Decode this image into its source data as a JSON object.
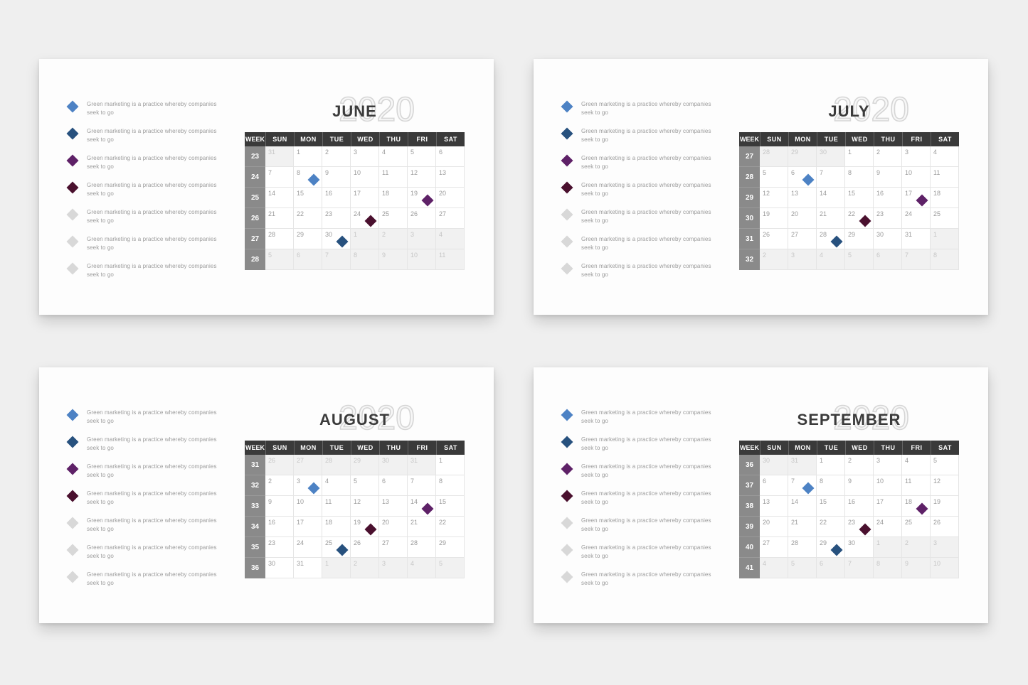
{
  "page": {
    "background": "#EFEFEF",
    "panel_background": "#FDFDFD"
  },
  "colors": {
    "light_blue": "#4D82C4",
    "dark_blue": "#27517E",
    "purple": "#5E2167",
    "maroon": "#4A102E",
    "gray": "#D8D8D8",
    "header_bg": "#3A3A3A",
    "header_text": "#FFFFFF",
    "week_cell_bg": "#8A8A8A",
    "day_text": "#9B9B9B",
    "muted_day_text": "#C6C6C6",
    "muted_cell_bg": "#F1F1F1",
    "grid_line": "#E5E5E5",
    "month_title_text": "#3B3B3B",
    "year_outline": "#D6D6D6",
    "legend_text_color": "#9B9B9B"
  },
  "legend_text": {
    "line1": "Green marketing is a practice whereby companies",
    "line2": "seek to go"
  },
  "legend_palette": [
    "light_blue",
    "dark_blue",
    "purple",
    "maroon",
    "gray",
    "gray",
    "gray"
  ],
  "weekday_headers": [
    "WEEK",
    "SUN",
    "MON",
    "TUE",
    "WED",
    "THU",
    "FRI",
    "SAT"
  ],
  "panels": [
    {
      "month": "JUNE",
      "year": "2020",
      "weeks": [
        {
          "num": "23",
          "days": [
            {
              "d": "31",
              "x": true
            },
            {
              "d": "1"
            },
            {
              "d": "2"
            },
            {
              "d": "3"
            },
            {
              "d": "4"
            },
            {
              "d": "5"
            },
            {
              "d": "6"
            }
          ]
        },
        {
          "num": "24",
          "days": [
            {
              "d": "7"
            },
            {
              "d": "8",
              "m": "light_blue"
            },
            {
              "d": "9"
            },
            {
              "d": "10"
            },
            {
              "d": "11"
            },
            {
              "d": "12"
            },
            {
              "d": "13"
            }
          ]
        },
        {
          "num": "25",
          "days": [
            {
              "d": "14"
            },
            {
              "d": "15"
            },
            {
              "d": "16"
            },
            {
              "d": "17"
            },
            {
              "d": "18"
            },
            {
              "d": "19",
              "m": "purple"
            },
            {
              "d": "20"
            }
          ]
        },
        {
          "num": "26",
          "days": [
            {
              "d": "21"
            },
            {
              "d": "22"
            },
            {
              "d": "23"
            },
            {
              "d": "24",
              "m": "maroon"
            },
            {
              "d": "25"
            },
            {
              "d": "26"
            },
            {
              "d": "27"
            }
          ]
        },
        {
          "num": "27",
          "days": [
            {
              "d": "28"
            },
            {
              "d": "29"
            },
            {
              "d": "30",
              "m": "dark_blue"
            },
            {
              "d": "1",
              "x": true
            },
            {
              "d": "2",
              "x": true
            },
            {
              "d": "3",
              "x": true
            },
            {
              "d": "4",
              "x": true
            }
          ]
        },
        {
          "num": "28",
          "days": [
            {
              "d": "5",
              "x": true
            },
            {
              "d": "6",
              "x": true
            },
            {
              "d": "7",
              "x": true
            },
            {
              "d": "8",
              "x": true
            },
            {
              "d": "9",
              "x": true
            },
            {
              "d": "10",
              "x": true
            },
            {
              "d": "11",
              "x": true
            }
          ]
        }
      ]
    },
    {
      "month": "JULY",
      "year": "2020",
      "weeks": [
        {
          "num": "27",
          "days": [
            {
              "d": "28",
              "x": true
            },
            {
              "d": "29",
              "x": true
            },
            {
              "d": "30",
              "x": true
            },
            {
              "d": "1"
            },
            {
              "d": "2"
            },
            {
              "d": "3"
            },
            {
              "d": "4"
            }
          ]
        },
        {
          "num": "28",
          "days": [
            {
              "d": "5"
            },
            {
              "d": "6",
              "m": "light_blue"
            },
            {
              "d": "7"
            },
            {
              "d": "8"
            },
            {
              "d": "9"
            },
            {
              "d": "10"
            },
            {
              "d": "11"
            }
          ]
        },
        {
          "num": "29",
          "days": [
            {
              "d": "12"
            },
            {
              "d": "13"
            },
            {
              "d": "14"
            },
            {
              "d": "15"
            },
            {
              "d": "16"
            },
            {
              "d": "17",
              "m": "purple"
            },
            {
              "d": "18"
            }
          ]
        },
        {
          "num": "30",
          "days": [
            {
              "d": "19"
            },
            {
              "d": "20"
            },
            {
              "d": "21"
            },
            {
              "d": "22",
              "m": "maroon"
            },
            {
              "d": "23"
            },
            {
              "d": "24"
            },
            {
              "d": "25"
            }
          ]
        },
        {
          "num": "31",
          "days": [
            {
              "d": "26"
            },
            {
              "d": "27"
            },
            {
              "d": "28",
              "m": "dark_blue"
            },
            {
              "d": "29"
            },
            {
              "d": "30"
            },
            {
              "d": "31"
            },
            {
              "d": "1",
              "x": true
            }
          ]
        },
        {
          "num": "32",
          "days": [
            {
              "d": "2",
              "x": true
            },
            {
              "d": "3",
              "x": true
            },
            {
              "d": "4",
              "x": true
            },
            {
              "d": "5",
              "x": true
            },
            {
              "d": "6",
              "x": true
            },
            {
              "d": "7",
              "x": true
            },
            {
              "d": "8",
              "x": true
            }
          ]
        }
      ]
    },
    {
      "month": "AUGUST",
      "year": "2020",
      "weeks": [
        {
          "num": "31",
          "days": [
            {
              "d": "26",
              "x": true
            },
            {
              "d": "27",
              "x": true
            },
            {
              "d": "28",
              "x": true
            },
            {
              "d": "29",
              "x": true
            },
            {
              "d": "30",
              "x": true
            },
            {
              "d": "31",
              "x": true
            },
            {
              "d": "1"
            }
          ]
        },
        {
          "num": "32",
          "days": [
            {
              "d": "2"
            },
            {
              "d": "3",
              "m": "light_blue"
            },
            {
              "d": "4"
            },
            {
              "d": "5"
            },
            {
              "d": "6"
            },
            {
              "d": "7"
            },
            {
              "d": "8"
            }
          ]
        },
        {
          "num": "33",
          "days": [
            {
              "d": "9"
            },
            {
              "d": "10"
            },
            {
              "d": "11"
            },
            {
              "d": "12"
            },
            {
              "d": "13"
            },
            {
              "d": "14",
              "m": "purple"
            },
            {
              "d": "15"
            }
          ]
        },
        {
          "num": "34",
          "days": [
            {
              "d": "16"
            },
            {
              "d": "17"
            },
            {
              "d": "18"
            },
            {
              "d": "19",
              "m": "maroon"
            },
            {
              "d": "20"
            },
            {
              "d": "21"
            },
            {
              "d": "22"
            }
          ]
        },
        {
          "num": "35",
          "days": [
            {
              "d": "23"
            },
            {
              "d": "24"
            },
            {
              "d": "25",
              "m": "dark_blue"
            },
            {
              "d": "26"
            },
            {
              "d": "27"
            },
            {
              "d": "28"
            },
            {
              "d": "29"
            }
          ]
        },
        {
          "num": "36",
          "days": [
            {
              "d": "30"
            },
            {
              "d": "31"
            },
            {
              "d": "1",
              "x": true
            },
            {
              "d": "2",
              "x": true
            },
            {
              "d": "3",
              "x": true
            },
            {
              "d": "4",
              "x": true
            },
            {
              "d": "5",
              "x": true
            }
          ]
        }
      ]
    },
    {
      "month": "SEPTEMBER",
      "year": "2020",
      "weeks": [
        {
          "num": "36",
          "days": [
            {
              "d": "30",
              "x": true
            },
            {
              "d": "31",
              "x": true
            },
            {
              "d": "1"
            },
            {
              "d": "2"
            },
            {
              "d": "3"
            },
            {
              "d": "4"
            },
            {
              "d": "5"
            }
          ]
        },
        {
          "num": "37",
          "days": [
            {
              "d": "6"
            },
            {
              "d": "7",
              "m": "light_blue"
            },
            {
              "d": "8"
            },
            {
              "d": "9"
            },
            {
              "d": "10"
            },
            {
              "d": "11"
            },
            {
              "d": "12"
            }
          ]
        },
        {
          "num": "38",
          "days": [
            {
              "d": "13"
            },
            {
              "d": "14"
            },
            {
              "d": "15"
            },
            {
              "d": "16"
            },
            {
              "d": "17"
            },
            {
              "d": "18",
              "m": "purple"
            },
            {
              "d": "19"
            }
          ]
        },
        {
          "num": "39",
          "days": [
            {
              "d": "20"
            },
            {
              "d": "21"
            },
            {
              "d": "22"
            },
            {
              "d": "23",
              "m": "maroon"
            },
            {
              "d": "24"
            },
            {
              "d": "25"
            },
            {
              "d": "26"
            }
          ]
        },
        {
          "num": "40",
          "days": [
            {
              "d": "27"
            },
            {
              "d": "28"
            },
            {
              "d": "29",
              "m": "dark_blue"
            },
            {
              "d": "30"
            },
            {
              "d": "1",
              "x": true
            },
            {
              "d": "2",
              "x": true
            },
            {
              "d": "3",
              "x": true
            }
          ]
        },
        {
          "num": "41",
          "days": [
            {
              "d": "4",
              "x": true
            },
            {
              "d": "5",
              "x": true
            },
            {
              "d": "6",
              "x": true
            },
            {
              "d": "7",
              "x": true
            },
            {
              "d": "8",
              "x": true
            },
            {
              "d": "9",
              "x": true
            },
            {
              "d": "10",
              "x": true
            }
          ]
        }
      ]
    }
  ]
}
